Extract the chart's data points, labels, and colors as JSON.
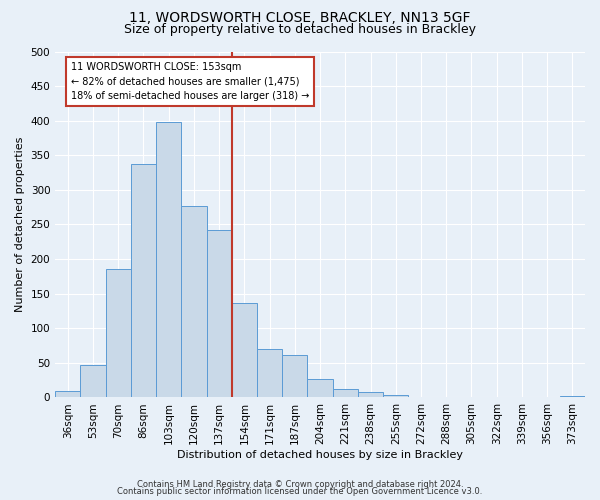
{
  "title": "11, WORDSWORTH CLOSE, BRACKLEY, NN13 5GF",
  "subtitle": "Size of property relative to detached houses in Brackley",
  "xlabel": "Distribution of detached houses by size in Brackley",
  "ylabel": "Number of detached properties",
  "bar_labels": [
    "36sqm",
    "53sqm",
    "70sqm",
    "86sqm",
    "103sqm",
    "120sqm",
    "137sqm",
    "154sqm",
    "171sqm",
    "187sqm",
    "204sqm",
    "221sqm",
    "238sqm",
    "255sqm",
    "272sqm",
    "288sqm",
    "305sqm",
    "322sqm",
    "339sqm",
    "356sqm",
    "373sqm"
  ],
  "bar_values": [
    10,
    47,
    185,
    338,
    398,
    277,
    242,
    137,
    70,
    62,
    26,
    12,
    8,
    4,
    1,
    1,
    0,
    0,
    0,
    0,
    2
  ],
  "bar_color": "#c9d9e8",
  "bar_edge_color": "#5b9bd5",
  "vline_x": 6.5,
  "vline_color": "#c0392b",
  "annotation_title": "11 WORDSWORTH CLOSE: 153sqm",
  "annotation_line1": "← 82% of detached houses are smaller (1,475)",
  "annotation_line2": "18% of semi-detached houses are larger (318) →",
  "annotation_box_facecolor": "#ffffff",
  "annotation_box_edgecolor": "#c0392b",
  "ylim": [
    0,
    500
  ],
  "yticks": [
    0,
    50,
    100,
    150,
    200,
    250,
    300,
    350,
    400,
    450,
    500
  ],
  "footer1": "Contains HM Land Registry data © Crown copyright and database right 2024.",
  "footer2": "Contains public sector information licensed under the Open Government Licence v3.0.",
  "background_color": "#e8f0f8",
  "plot_background_color": "#e8f0f8",
  "grid_color": "#ffffff",
  "title_fontsize": 10,
  "subtitle_fontsize": 9,
  "axis_label_fontsize": 8,
  "tick_fontsize": 7.5,
  "annotation_fontsize": 7,
  "footer_fontsize": 6
}
